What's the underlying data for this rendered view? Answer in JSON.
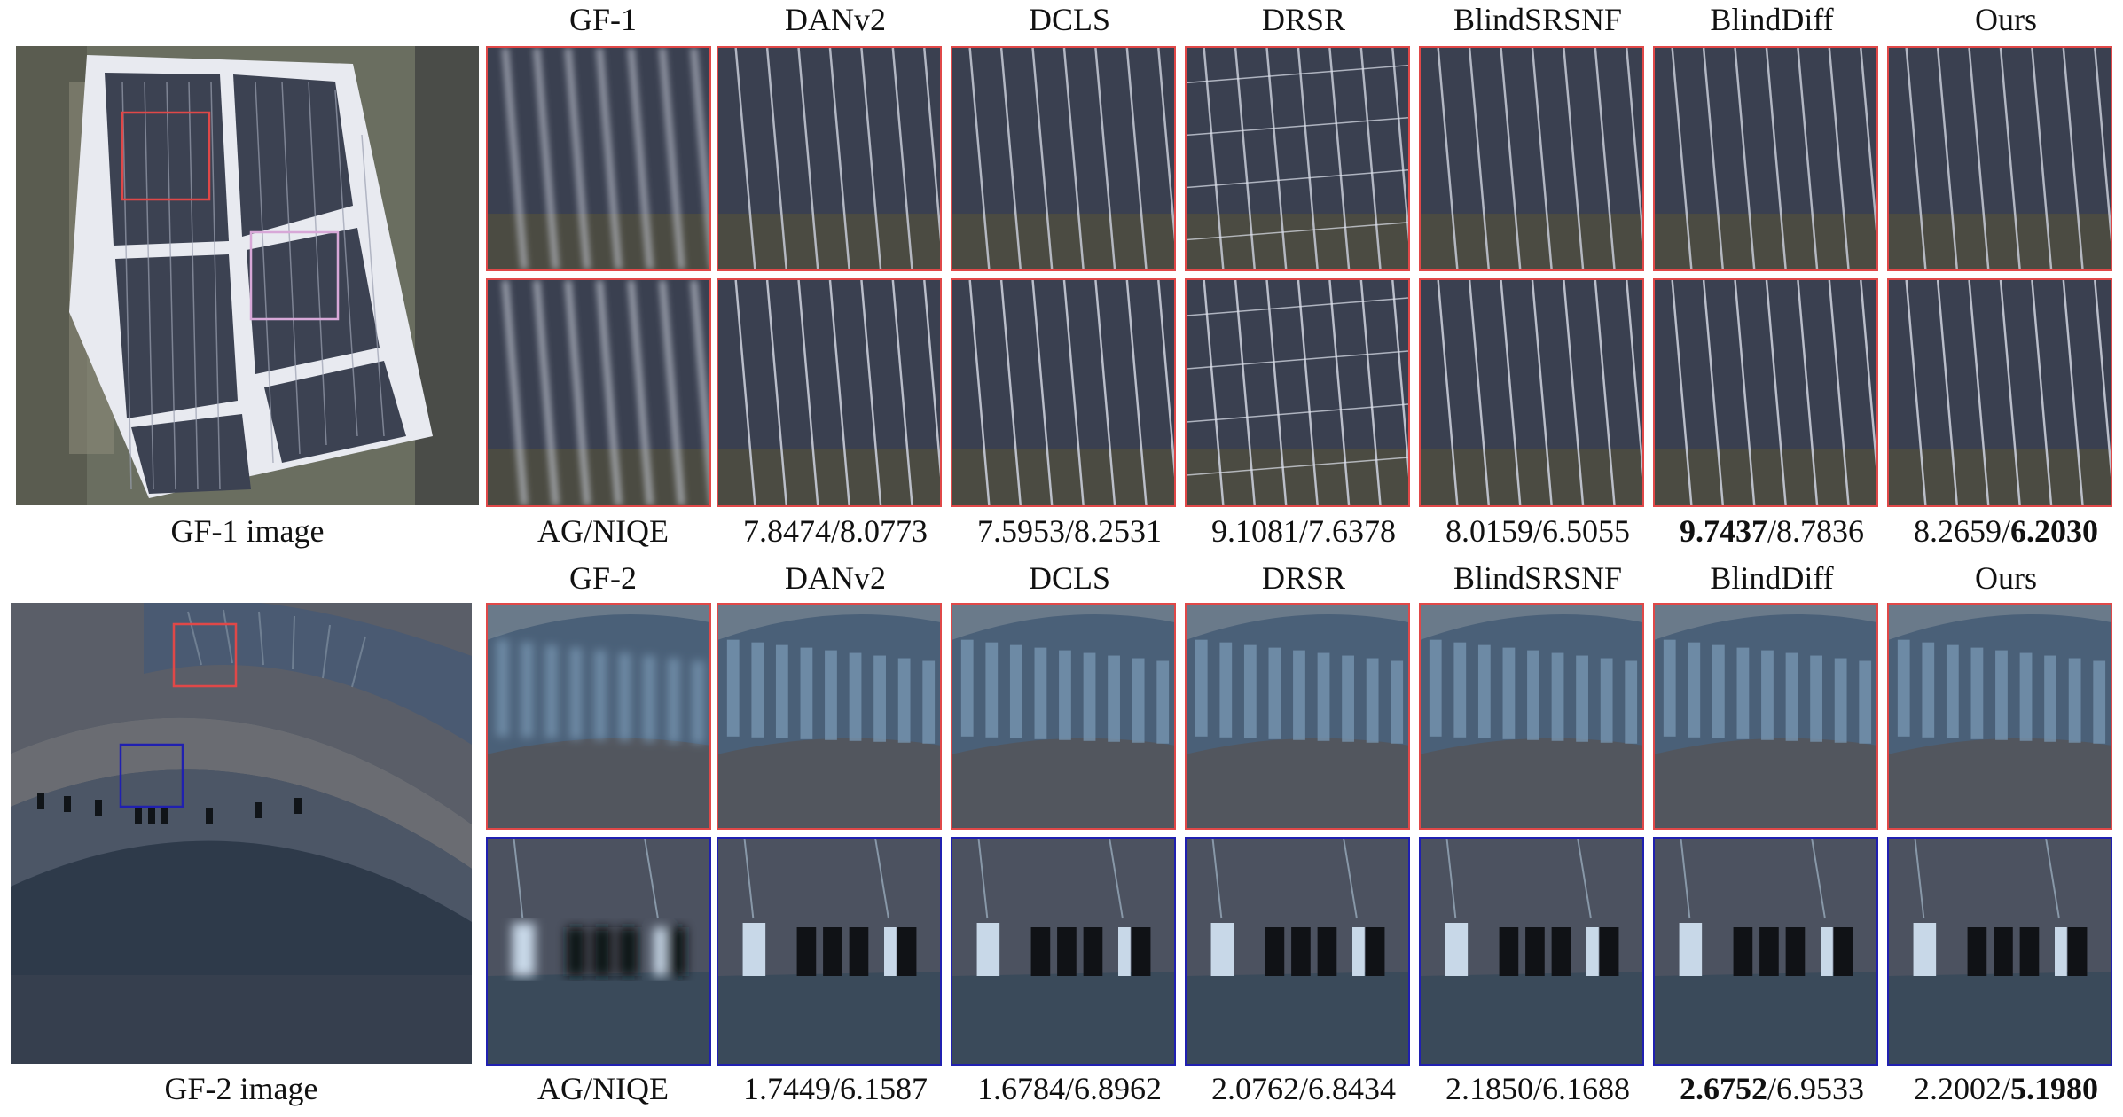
{
  "figure": {
    "block1": {
      "headers": [
        "GF-1",
        "DANv2",
        "DCLS",
        "DRSR",
        "BlindSRSNF",
        "BlindDiff",
        "Ours"
      ],
      "overview_caption": "GF-1 image",
      "metric_label": "AG/NIQE",
      "metrics": [
        {
          "method": "DANv2",
          "ag": "7.8474",
          "niqe": "8.0773",
          "ag_bold": false,
          "niqe_bold": false
        },
        {
          "method": "DCLS",
          "ag": "7.5953",
          "niqe": "8.2531",
          "ag_bold": false,
          "niqe_bold": false
        },
        {
          "method": "DRSR",
          "ag": "9.1081",
          "niqe": "7.6378",
          "ag_bold": false,
          "niqe_bold": false
        },
        {
          "method": "BlindSRSNF",
          "ag": "8.0159",
          "niqe": "6.5055",
          "ag_bold": false,
          "niqe_bold": false
        },
        {
          "method": "BlindDiff",
          "ag": "9.7437",
          "niqe": "8.7836",
          "ag_bold": true,
          "niqe_bold": false
        },
        {
          "method": "Ours",
          "ag": "8.2659",
          "niqe": "6.2030",
          "ag_bold": false,
          "niqe_bold": true
        }
      ]
    },
    "block2": {
      "headers": [
        "GF-2",
        "DANv2",
        "DCLS",
        "DRSR",
        "BlindSRSNF",
        "BlindDiff",
        "Ours"
      ],
      "overview_caption": "GF-2 image",
      "metric_label": "AG/NIQE",
      "metrics": [
        {
          "method": "DANv2",
          "ag": "1.7449",
          "niqe": "6.1587",
          "ag_bold": false,
          "niqe_bold": false
        },
        {
          "method": "DCLS",
          "ag": "1.6784",
          "niqe": "6.8962",
          "ag_bold": false,
          "niqe_bold": false
        },
        {
          "method": "DRSR",
          "ag": "2.0762",
          "niqe": "6.8434",
          "ag_bold": false,
          "niqe_bold": false
        },
        {
          "method": "BlindSRSNF",
          "ag": "2.1850",
          "niqe": "6.1688",
          "ag_bold": false,
          "niqe_bold": false
        },
        {
          "method": "BlindDiff",
          "ag": "2.6752",
          "niqe": "6.9533",
          "ag_bold": true,
          "niqe_bold": false
        },
        {
          "method": "Ours",
          "ag": "2.2002",
          "niqe": "5.1980",
          "ag_bold": false,
          "niqe_bold": true
        }
      ]
    },
    "colors": {
      "red_box": "#e04848",
      "blue_box": "#2020b0",
      "pink_box": "#d8a8d8",
      "solar_dark": "#3a4050",
      "solar_line": "#c8ccd8",
      "stadium_blue": "#4a6078"
    }
  }
}
